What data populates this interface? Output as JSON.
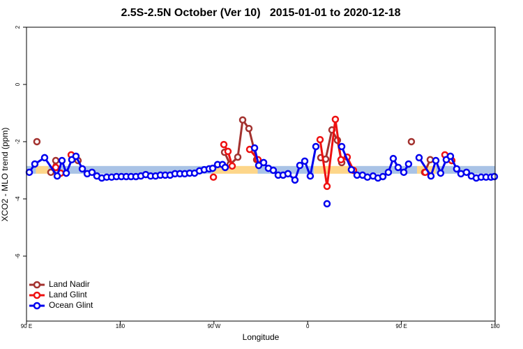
{
  "chart_data": {
    "type": "line",
    "title": "2.5S-2.5N October (Ver 10)   2015-01-01 to 2020-12-18",
    "x_label": "Longitude",
    "y_label": "XCO2 - MLO trend (ppm)",
    "xlim": [
      90,
      540
    ],
    "xticks": [
      {
        "value": 90,
        "label": "90 E"
      },
      {
        "value": 180,
        "label": "180"
      },
      {
        "value": 270,
        "label": "90 W"
      },
      {
        "value": 360,
        "label": "0"
      },
      {
        "value": 450,
        "label": "90 E"
      },
      {
        "value": 540,
        "label": "180"
      }
    ],
    "ylim": [
      -8.27,
      2
    ],
    "yticks": [
      2,
      0,
      -2,
      -4,
      -6
    ],
    "legend": "bottom-left",
    "band": {
      "range": [
        -3.12,
        -2.85
      ],
      "segments": [
        {
          "start": 90,
          "end": 99,
          "color": "#a9c3e6"
        },
        {
          "start": 99,
          "end": 111,
          "color": "#fdd68a"
        },
        {
          "start": 111,
          "end": 269,
          "color": "#a9c3e6"
        },
        {
          "start": 269,
          "end": 312,
          "color": "#fdd68a"
        },
        {
          "start": 312,
          "end": 366,
          "color": "#a9c3e6"
        },
        {
          "start": 366,
          "end": 406,
          "color": "#fdd68a"
        },
        {
          "start": 406,
          "end": 465,
          "color": "#a9c3e6"
        },
        {
          "start": 465,
          "end": 483,
          "color": "#fdd68a"
        },
        {
          "start": 483,
          "end": 540,
          "color": "#a9c3e6"
        }
      ]
    },
    "series": [
      {
        "name": "Land Nadir",
        "color": "#a3322f",
        "x": [
          100.0,
          null,
          113.4,
          118.1,
          null,
          139.5,
          null,
          280.2,
          285.5,
          292.9,
          297.6,
          303.6,
          311.0,
          null,
          372.6,
          377.3,
          383.3,
          388.6,
          392.7,
          null,
          459.6,
          null,
          472.3,
          477.7,
          null,
          498.4
        ],
        "values": [
          -2.0,
          null,
          -3.07,
          -2.66,
          null,
          -2.66,
          null,
          -2.37,
          -2.8,
          -2.54,
          -1.24,
          -1.54,
          -2.63,
          null,
          -2.56,
          -2.61,
          -1.59,
          -1.95,
          -2.73,
          null,
          -2.0,
          null,
          -3.07,
          -2.63,
          null,
          -2.66
        ]
      },
      {
        "name": "Land Glint",
        "color": "#ee1111",
        "x": [
          118.1,
          122.8,
          null,
          132.9,
          null,
          269.5,
          null,
          279.5,
          283.5,
          287.5,
          null,
          304.3,
          312.3,
          null,
          371.9,
          378.6,
          386.6,
          392.0,
          398.0,
          404.0,
          null,
          473.0,
          null,
          491.8,
          498.4
        ],
        "values": [
          -2.9,
          -3.1,
          null,
          -2.46,
          null,
          -3.24,
          null,
          -2.1,
          -2.34,
          -2.85,
          null,
          -2.27,
          -2.63,
          null,
          -1.93,
          -3.56,
          -1.22,
          -2.63,
          -2.54,
          -3.0,
          null,
          -3.07,
          null,
          -2.46,
          -2.66
        ]
      },
      {
        "name": "Ocean Glint",
        "color": "#0000ee",
        "x": [
          92.7,
          98.0,
          107.4,
          119.5,
          124.1,
          128.2,
          133.5,
          137.5,
          143.6,
          148.3,
          152.9,
          157.6,
          162.3,
          167.0,
          171.7,
          176.4,
          181.1,
          185.8,
          190.4,
          195.1,
          199.8,
          204.5,
          209.2,
          213.9,
          218.6,
          223.2,
          227.9,
          232.6,
          237.3,
          242.0,
          246.7,
          251.4,
          256.1,
          260.7,
          265.4,
          268.8,
          273.5,
          278.2,
          280.8,
          null,
          309.0,
          313.0,
          317.7,
          322.3,
          327.0,
          331.7,
          336.4,
          341.1,
          347.8,
          352.5,
          357.2,
          362.5,
          367.9,
          null,
          378.6,
          null,
          392.7,
          402.0,
          407.4,
          412.7,
          417.4,
          422.8,
          427.5,
          432.2,
          437.5,
          442.2,
          446.9,
          452.3,
          456.9,
          null,
          467.0,
          478.4,
          483.1,
          487.7,
          493.1,
          497.1,
          503.1,
          507.2,
          512.5,
          517.2,
          521.9,
          526.6,
          531.3,
          536.0,
          539.3
        ],
        "values": [
          -3.07,
          -2.78,
          -2.56,
          -3.2,
          -2.66,
          -3.1,
          -2.63,
          -2.51,
          -2.95,
          -3.12,
          -3.07,
          -3.2,
          -3.27,
          -3.24,
          -3.24,
          -3.22,
          -3.22,
          -3.22,
          -3.22,
          -3.22,
          -3.2,
          -3.15,
          -3.2,
          -3.2,
          -3.17,
          -3.17,
          -3.17,
          -3.12,
          -3.12,
          -3.12,
          -3.1,
          -3.1,
          -3.02,
          -2.98,
          -2.95,
          -2.93,
          -2.8,
          -2.8,
          -2.9,
          null,
          -2.22,
          -2.83,
          -2.73,
          -2.93,
          -3.0,
          -3.17,
          -3.17,
          -3.12,
          -3.34,
          -2.83,
          -2.68,
          -3.2,
          -2.17,
          null,
          -4.17,
          null,
          -2.17,
          -2.98,
          -3.17,
          -3.17,
          -3.24,
          -3.2,
          -3.27,
          -3.22,
          -3.07,
          -2.59,
          -2.9,
          -3.07,
          -2.78,
          null,
          -2.56,
          -3.2,
          -2.66,
          -3.1,
          -2.63,
          -2.51,
          -2.95,
          -3.12,
          -3.07,
          -3.2,
          -3.27,
          -3.24,
          -3.24,
          -3.24,
          -3.22
        ]
      }
    ]
  }
}
